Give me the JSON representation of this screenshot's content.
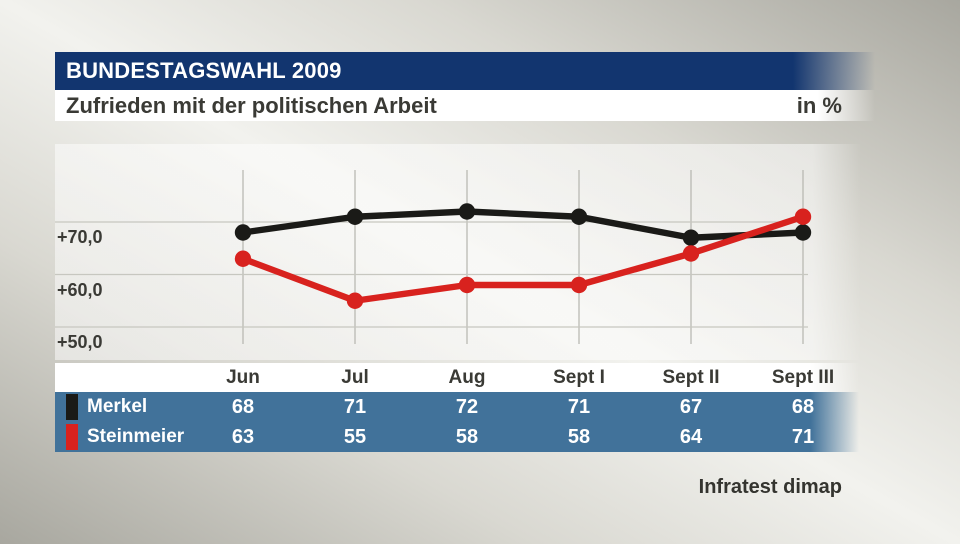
{
  "header": {
    "title": "BUNDESTAGSWAHL 2009",
    "subtitle": "Zufrieden mit der politischen Arbeit",
    "unit_label": "in %"
  },
  "footer": {
    "source": "Infratest dimap"
  },
  "colors": {
    "header_bar": "#12356f",
    "table_bar": "#41729a",
    "merkel_line": "#1a1a17",
    "steinmeier_line": "#d8221e",
    "background_light": "#f2f2ee",
    "background_gray": "#a8a79f"
  },
  "chart_data": {
    "type": "line",
    "title": "Zufrieden mit der politischen Arbeit",
    "unit": "%",
    "categories": [
      "Jun",
      "Jul",
      "Aug",
      "Sept I",
      "Sept II",
      "Sept III"
    ],
    "series": [
      {
        "name": "Merkel",
        "color": "#1a1a17",
        "values": [
          68,
          71,
          72,
          71,
          67,
          68
        ]
      },
      {
        "name": "Steinmeier",
        "color": "#d8221e",
        "values": [
          63,
          55,
          58,
          58,
          64,
          71
        ]
      }
    ],
    "y_ticks": [
      {
        "value": 70,
        "label": "+70,0"
      },
      {
        "value": 60,
        "label": "+60,0"
      },
      {
        "value": 50,
        "label": "+50,0"
      }
    ],
    "ylim": [
      47,
      80
    ],
    "grid": true,
    "legend_position": "table-left"
  },
  "table": {
    "columns": [
      "Jun",
      "Jul",
      "Aug",
      "Sept I",
      "Sept II",
      "Sept III"
    ],
    "rows": [
      {
        "label": "Merkel",
        "chip_color": "#1a1a17",
        "values": [
          68,
          71,
          72,
          71,
          67,
          68
        ]
      },
      {
        "label": "Steinmeier",
        "chip_color": "#d8221e",
        "values": [
          63,
          55,
          58,
          58,
          64,
          71
        ]
      }
    ]
  }
}
